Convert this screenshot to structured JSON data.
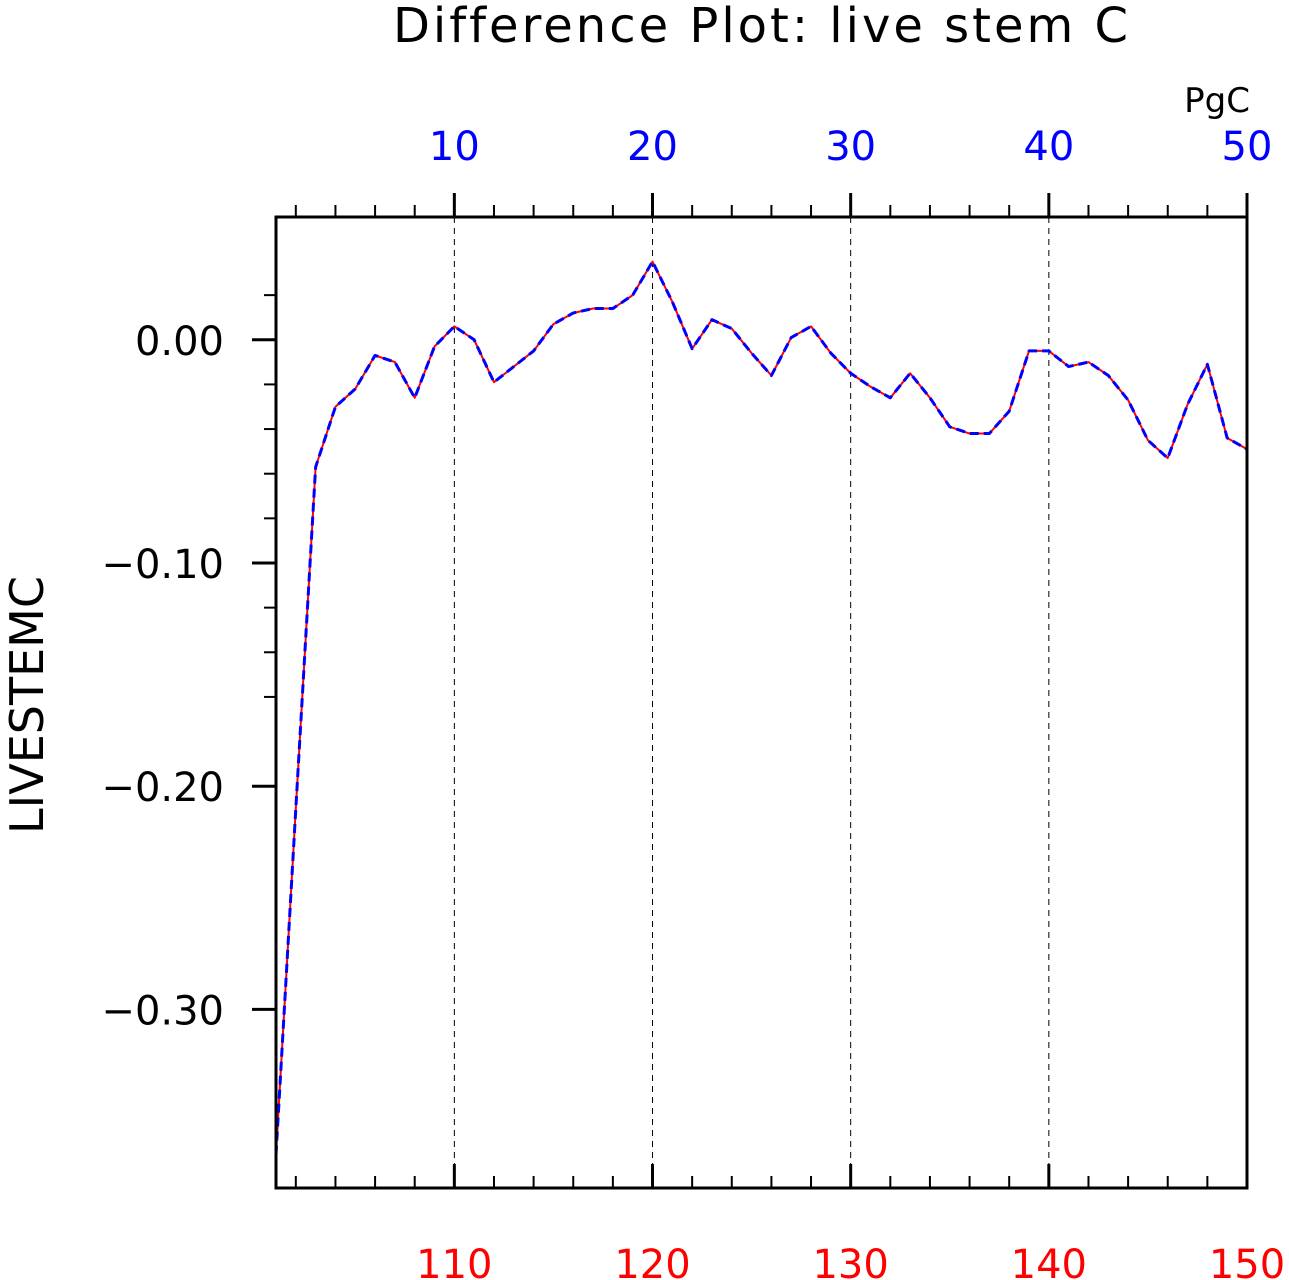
{
  "chart_data": {
    "type": "line",
    "title": "Difference Plot: live stem C",
    "units_label": "PgC",
    "ylabel": "LIVESTEMC",
    "xlabel": "",
    "ylim": [
      -0.38,
      0.055
    ],
    "yticks": [
      0.0,
      -0.1,
      -0.2,
      -0.3
    ],
    "ytick_labels": [
      "0.00",
      "−0.10",
      "−0.20",
      "−0.30"
    ],
    "top_axis": {
      "range": [
        1,
        50
      ],
      "ticks": [
        10,
        20,
        30,
        40,
        50
      ],
      "tick_labels": [
        "10",
        "20",
        "30",
        "40",
        "50"
      ],
      "color": "#0000ff"
    },
    "bottom_axis": {
      "range": [
        101,
        150
      ],
      "ticks": [
        110,
        120,
        130,
        140,
        150
      ],
      "tick_labels": [
        "110",
        "120",
        "130",
        "140",
        "150"
      ],
      "color": "#ff0000"
    },
    "grid": "vertical-dashed",
    "series": [
      {
        "axis": "bottom",
        "color": "#ff0000",
        "style": "solid",
        "x": [
          101,
          102,
          103,
          104,
          105,
          106,
          107,
          108,
          109,
          110,
          111,
          112,
          113,
          114,
          115,
          116,
          117,
          118,
          119,
          120,
          121,
          122,
          123,
          124,
          125,
          126,
          127,
          128,
          129,
          130,
          131,
          132,
          133,
          134,
          135,
          136,
          137,
          138,
          139,
          140,
          141,
          142,
          143,
          144,
          145,
          146,
          147,
          148,
          149,
          150
        ],
        "values": [
          -0.365,
          -0.21,
          -0.057,
          -0.03,
          -0.022,
          -0.007,
          -0.01,
          -0.026,
          -0.003,
          0.006,
          0.0,
          -0.019,
          -0.012,
          -0.005,
          0.007,
          0.012,
          0.014,
          0.014,
          0.02,
          0.035,
          0.017,
          -0.004,
          0.009,
          0.005,
          -0.006,
          -0.016,
          0.001,
          0.006,
          -0.006,
          -0.015,
          -0.021,
          -0.026,
          -0.015,
          -0.026,
          -0.039,
          -0.042,
          -0.042,
          -0.032,
          -0.005,
          -0.005,
          -0.012,
          -0.01,
          -0.016,
          -0.027,
          -0.045,
          -0.053,
          -0.029,
          -0.011,
          -0.044,
          -0.049
        ]
      },
      {
        "axis": "top",
        "color": "#0000ff",
        "style": "dashed",
        "x": [
          1,
          2,
          3,
          4,
          5,
          6,
          7,
          8,
          9,
          10,
          11,
          12,
          13,
          14,
          15,
          16,
          17,
          18,
          19,
          20,
          21,
          22,
          23,
          24,
          25,
          26,
          27,
          28,
          29,
          30,
          31,
          32,
          33,
          34,
          35,
          36,
          37,
          38,
          39,
          40,
          41,
          42,
          43,
          44,
          45,
          46,
          47,
          48,
          49,
          50
        ],
        "values": [
          -0.365,
          -0.21,
          -0.057,
          -0.03,
          -0.022,
          -0.007,
          -0.01,
          -0.026,
          -0.003,
          0.006,
          0.0,
          -0.019,
          -0.012,
          -0.005,
          0.007,
          0.012,
          0.014,
          0.014,
          0.02,
          0.035,
          0.017,
          -0.004,
          0.009,
          0.005,
          -0.006,
          -0.016,
          0.001,
          0.006,
          -0.006,
          -0.015,
          -0.021,
          -0.026,
          -0.015,
          -0.026,
          -0.039,
          -0.042,
          -0.042,
          -0.032,
          -0.005,
          -0.005,
          -0.012,
          -0.01,
          -0.016,
          -0.027,
          -0.045,
          -0.053,
          -0.029,
          -0.011,
          -0.044,
          -0.049
        ]
      }
    ]
  }
}
